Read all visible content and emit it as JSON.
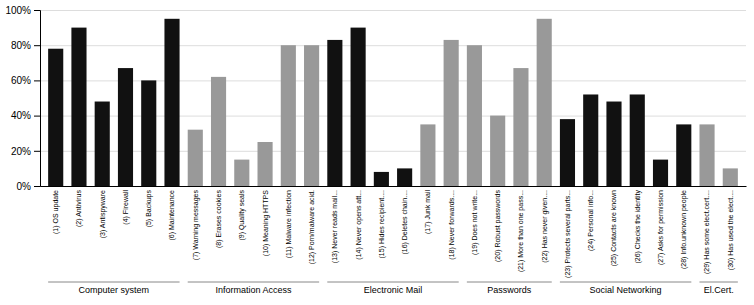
{
  "chart_data": {
    "type": "bar",
    "categories": [
      "(1) OS update",
      "(2) Antivirus",
      "(3) Antispyware",
      "(4) Firewall",
      "(5) Backups",
      "(6) Maintenance",
      "(7) Warning messages",
      "(8) Erases cookies",
      "(9) Quality seals",
      "(10) Meaning HTTPS",
      "(11) Malware infection",
      "(12) Porn/malware acid.",
      "(13) Never reads mail...",
      "(14) Never opens att...",
      "(15) Hides recipient....",
      "(16) Deletes chain....",
      "(17) Junk mail",
      "(18) Never forwards....",
      "(19) Does not write...",
      "(20) Robust passwords",
      "(21) More than one pass...",
      "(22) Has never given....",
      "(23) Protects several parts...",
      "(24) Personal info...",
      "(25) Contacts are known",
      "(26) Checks the identity",
      "(27) Asks for permission",
      "(28) Info.unknown people",
      "(29) Has some elect.cert....",
      "(30) Has used the elect...."
    ],
    "values": [
      78,
      90,
      48,
      67,
      60,
      95,
      32,
      62,
      15,
      25,
      80,
      80,
      83,
      90,
      8,
      10,
      35,
      83,
      80,
      40,
      67,
      95,
      38,
      52,
      48,
      52,
      15,
      35,
      35,
      10
    ],
    "colors": [
      "#111111",
      "#111111",
      "#111111",
      "#111111",
      "#111111",
      "#111111",
      "#999999",
      "#999999",
      "#999999",
      "#999999",
      "#999999",
      "#999999",
      "#111111",
      "#111111",
      "#111111",
      "#111111",
      "#999999",
      "#999999",
      "#999999",
      "#999999",
      "#999999",
      "#999999",
      "#111111",
      "#111111",
      "#111111",
      "#111111",
      "#111111",
      "#111111",
      "#999999",
      "#999999"
    ],
    "groups": [
      {
        "label": "Computer system",
        "span": [
          0,
          5
        ]
      },
      {
        "label": "Information Access",
        "span": [
          6,
          11
        ]
      },
      {
        "label": "Electronic Mail",
        "span": [
          12,
          17
        ]
      },
      {
        "label": "Passwords",
        "span": [
          18,
          21
        ]
      },
      {
        "label": "Social Networking",
        "span": [
          22,
          27
        ]
      },
      {
        "label": "El.Cert.",
        "span": [
          28,
          29
        ]
      }
    ],
    "ylim": [
      0,
      100
    ],
    "yticks": [
      {
        "value": 0,
        "label": "0%"
      },
      {
        "value": 20,
        "label": "20%"
      },
      {
        "value": 40,
        "label": "40%"
      },
      {
        "value": 60,
        "label": "60%"
      },
      {
        "value": 80,
        "label": "80%"
      },
      {
        "value": 100,
        "label": "100%"
      }
    ],
    "grid": true
  }
}
